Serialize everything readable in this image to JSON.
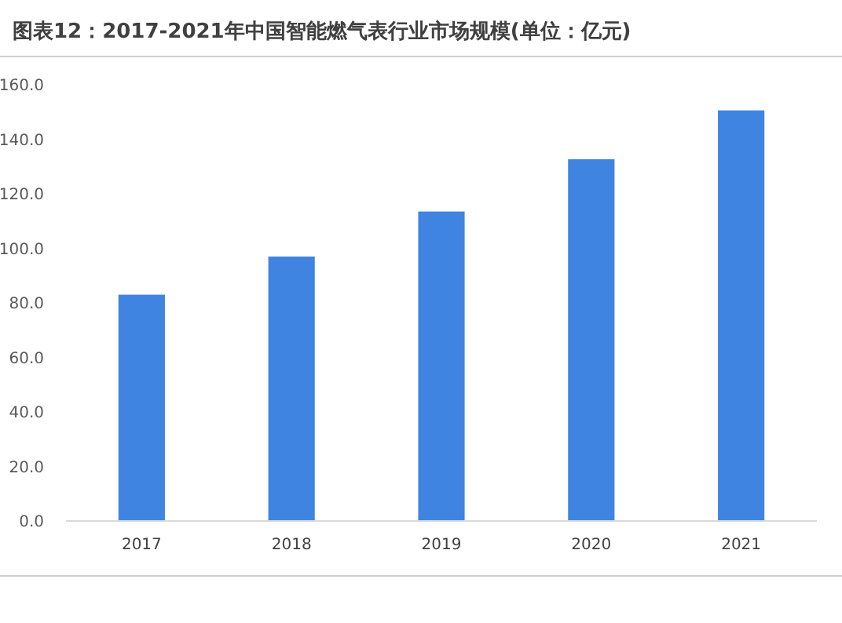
{
  "chart_data": {
    "type": "bar",
    "title": "图表12：2017-2021年中国智能燃气表行业市场规模(单位：亿元)",
    "categories": [
      "2017",
      "2018",
      "2019",
      "2020",
      "2021"
    ],
    "values": [
      83,
      97,
      113.5,
      132.7,
      150.6
    ],
    "color": "#3f84e0",
    "ylim": [
      0,
      160
    ],
    "yticks": [
      {
        "value": 0,
        "label": "0.0"
      },
      {
        "value": 20,
        "label": "20.0"
      },
      {
        "value": 40,
        "label": "40.0"
      },
      {
        "value": 60,
        "label": "60.0"
      },
      {
        "value": 80,
        "label": "80.0"
      },
      {
        "value": 100,
        "label": "100.0"
      },
      {
        "value": 120,
        "label": "120.0"
      },
      {
        "value": 140,
        "label": "140.0"
      },
      {
        "value": 160,
        "label": "160.0"
      }
    ],
    "grid": false
  }
}
